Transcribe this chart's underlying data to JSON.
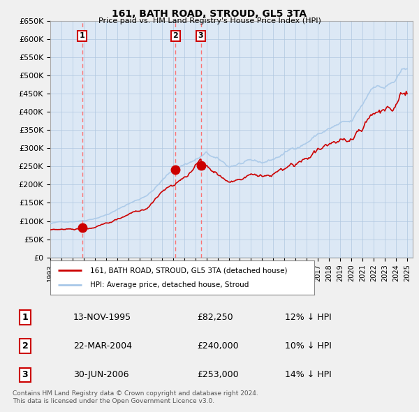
{
  "title": "161, BATH ROAD, STROUD, GL5 3TA",
  "subtitle": "Price paid vs. HM Land Registry's House Price Index (HPI)",
  "ylabel_ticks": [
    "£0",
    "£50K",
    "£100K",
    "£150K",
    "£200K",
    "£250K",
    "£300K",
    "£350K",
    "£400K",
    "£450K",
    "£500K",
    "£550K",
    "£600K",
    "£650K"
  ],
  "ytick_values": [
    0,
    50000,
    100000,
    150000,
    200000,
    250000,
    300000,
    350000,
    400000,
    450000,
    500000,
    550000,
    600000,
    650000
  ],
  "xlim_start": 1993.0,
  "xlim_end": 2025.5,
  "ylim_min": 0,
  "ylim_max": 650000,
  "hpi_color": "#a8c8e8",
  "price_color": "#cc0000",
  "sale_marker_color": "#cc0000",
  "vline_color": "#ff6666",
  "background_color": "#f0f0f0",
  "plot_bg_color": "#dce8f5",
  "grid_color": "#b0c8e0",
  "legend_label_price": "161, BATH ROAD, STROUD, GL5 3TA (detached house)",
  "legend_label_hpi": "HPI: Average price, detached house, Stroud",
  "sales": [
    {
      "num": 1,
      "date": "13-NOV-1995",
      "price": 82250,
      "pct": "12%",
      "dir": "↓",
      "year": 1995.87
    },
    {
      "num": 2,
      "date": "22-MAR-2004",
      "price": 240000,
      "pct": "10%",
      "dir": "↓",
      "year": 2004.22
    },
    {
      "num": 3,
      "date": "30-JUN-2006",
      "price": 253000,
      "pct": "14%",
      "dir": "↓",
      "year": 2006.5
    }
  ],
  "footer_line1": "Contains HM Land Registry data © Crown copyright and database right 2024.",
  "footer_line2": "This data is licensed under the Open Government Licence v3.0.",
  "xtick_years": [
    1993,
    1994,
    1995,
    1996,
    1997,
    1998,
    1999,
    2000,
    2001,
    2002,
    2003,
    2004,
    2005,
    2006,
    2007,
    2008,
    2009,
    2010,
    2011,
    2012,
    2013,
    2014,
    2015,
    2016,
    2017,
    2018,
    2019,
    2020,
    2021,
    2022,
    2023,
    2024,
    2025
  ]
}
